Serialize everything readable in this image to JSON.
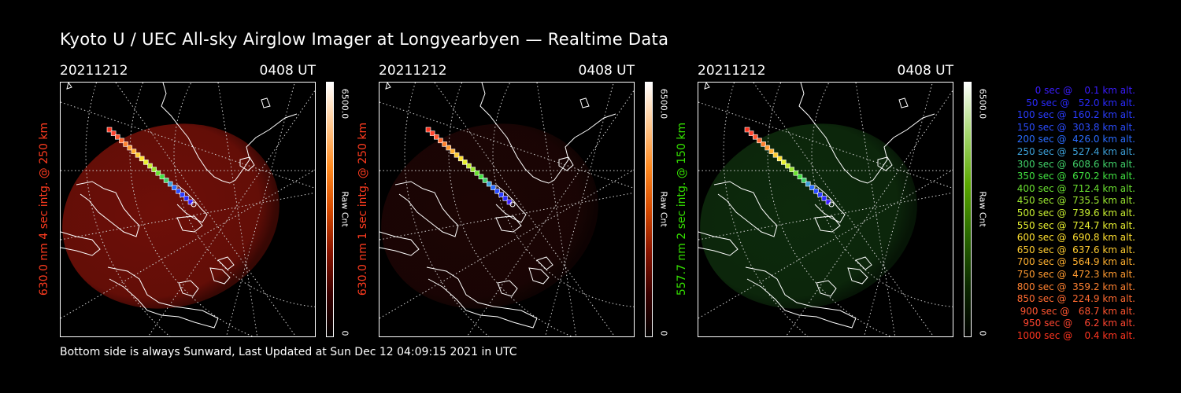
{
  "title": "Kyoto U / UEC All-sky Airglow Imager at Longyearbyen — Realtime Data",
  "footer": "Bottom side is always Sunward, Last Updated at Sun Dec 12 04:09:15 2021 in UTC",
  "panels": [
    {
      "date": "20211212",
      "time": "0408 UT",
      "ylabel": "630.0 nm 4 sec intg. @ 250 km",
      "label_color": "#ff3b1f",
      "colorbar_max": "6500.0",
      "colorbar_min": "0",
      "colorbar_unit": "Raw Cnt",
      "colorbar_gradient": [
        "#000000",
        "#3a0000",
        "#8a1400",
        "#d64a00",
        "#ff8a20",
        "#ffc890",
        "#ffffff"
      ],
      "glow_color": "#6e0f08"
    },
    {
      "date": "20211212",
      "time": "0408 UT",
      "ylabel": "630.0 nm 1 sec intg. @ 250 km",
      "label_color": "#ff3b1f",
      "colorbar_max": "6500.0",
      "colorbar_min": "0",
      "colorbar_unit": "Raw Cnt",
      "colorbar_gradient": [
        "#000000",
        "#3a0000",
        "#8a1400",
        "#d64a00",
        "#ff8a20",
        "#ffc890",
        "#ffffff"
      ],
      "glow_color": "#1c0504"
    },
    {
      "date": "20211212",
      "time": "0408 UT",
      "ylabel": "557.7 nm 2 sec intg. @ 150 km",
      "label_color": "#34e000",
      "colorbar_max": "6500.0",
      "colorbar_min": "0",
      "colorbar_unit": "Raw Cnt",
      "colorbar_gradient": [
        "#000000",
        "#0c2a00",
        "#2a6a00",
        "#5aa800",
        "#a6d870",
        "#ffffff"
      ],
      "glow_color": "#0d2a0c"
    }
  ],
  "legend": [
    {
      "text": "   0 sec @    0.1 km alt.",
      "color": "#3a1cff"
    },
    {
      "text": "  50 sec @   52.0 km alt.",
      "color": "#2a2aff"
    },
    {
      "text": " 100 sec @  160.2 km alt.",
      "color": "#2a3cff"
    },
    {
      "text": " 150 sec @  303.8 km alt.",
      "color": "#2a4cff"
    },
    {
      "text": " 200 sec @  426.0 km alt.",
      "color": "#2a6cff"
    },
    {
      "text": " 250 sec @  527.4 km alt.",
      "color": "#3ca0d8"
    },
    {
      "text": " 300 sec @  608.6 km alt.",
      "color": "#40d068"
    },
    {
      "text": " 350 sec @  670.2 km alt.",
      "color": "#40e040"
    },
    {
      "text": " 400 sec @  712.4 km alt.",
      "color": "#6ae030"
    },
    {
      "text": " 450 sec @  735.5 km alt.",
      "color": "#9ae630"
    },
    {
      "text": " 500 sec @  739.6 km alt.",
      "color": "#c8ee30"
    },
    {
      "text": " 550 sec @  724.7 km alt.",
      "color": "#e8f030"
    },
    {
      "text": " 600 sec @  690.8 km alt.",
      "color": "#ffe030"
    },
    {
      "text": " 650 sec @  637.6 km alt.",
      "color": "#ffcc30"
    },
    {
      "text": " 700 sec @  564.9 km alt.",
      "color": "#ffb030"
    },
    {
      "text": " 750 sec @  472.3 km alt.",
      "color": "#ff9a30"
    },
    {
      "text": " 800 sec @  359.2 km alt.",
      "color": "#ff8230"
    },
    {
      "text": " 850 sec @  224.9 km alt.",
      "color": "#ff6a30"
    },
    {
      "text": " 900 sec @   68.7 km alt.",
      "color": "#ff5530"
    },
    {
      "text": " 950 sec @    6.2 km alt.",
      "color": "#ff4530"
    },
    {
      "text": "1000 sec @    0.4 km alt.",
      "color": "#ff3520"
    }
  ]
}
